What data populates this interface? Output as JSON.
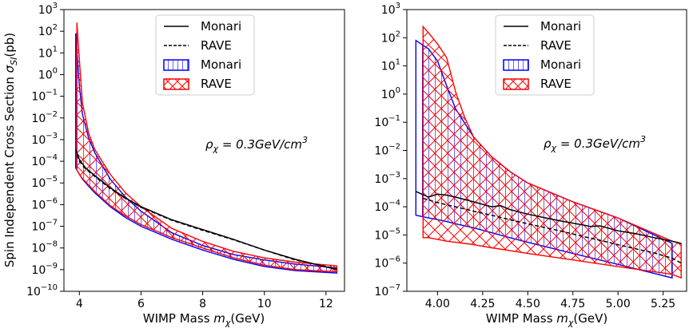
{
  "chart_data": [
    {
      "type": "area",
      "panel": "left",
      "xlabel_text": "WIMP Mass ",
      "xlabel_var": "m",
      "xlabel_sub": "χ",
      "xlabel_unit": "(GeV)",
      "ylabel_text": "Spin Independent Cross Section ",
      "ylabel_var": "σ",
      "ylabel_sub": "SI",
      "ylabel_unit": "(pb)",
      "xlim": [
        3.5,
        12.6
      ],
      "ylim_log10": [
        -10,
        3
      ],
      "x_ticks": [
        4,
        6,
        8,
        10,
        12
      ],
      "x_tick_labels": [
        "4",
        "6",
        "8",
        "10",
        "12"
      ],
      "y_tick_exponents": [
        -10,
        -9,
        -8,
        -7,
        -6,
        -5,
        -4,
        -3,
        -2,
        -1,
        0,
        1,
        2,
        3
      ],
      "annotation": {
        "var": "ρ",
        "sub": "χ",
        "text": " = 0.3GeV/cm",
        "sup": "3"
      },
      "legend": {
        "position": "upper-center",
        "entries": [
          "Monari",
          "RAVE",
          "Monari",
          "RAVE"
        ]
      },
      "series": [
        {
          "name": "Monari",
          "kind": "line",
          "style": "solid",
          "color": "#000000",
          "x": [
            3.88,
            4.0,
            4.2,
            4.5,
            5.0,
            5.5,
            6.0,
            7.0,
            8.0,
            9.0,
            10.0,
            11.0,
            12.35
          ],
          "y": [
            0.00035,
            0.00012,
            5e-05,
            2.2e-05,
            6e-06,
            2e-06,
            8e-07,
            2e-07,
            7e-08,
            2.5e-08,
            8e-09,
            3e-09,
            1e-09
          ]
        },
        {
          "name": "RAVE",
          "kind": "line",
          "style": "dashed",
          "color": "#000000",
          "x": [
            3.92,
            4.0,
            4.2,
            4.5,
            5.0,
            5.5,
            6.0,
            7.0,
            8.0,
            9.0,
            10.0,
            11.0,
            12.35
          ],
          "y": [
            0.0002,
            0.0001,
            4.5e-05,
            2e-05,
            5.5e-06,
            1.9e-06,
            7.5e-07,
            1.9e-07,
            6.5e-08,
            2.4e-08,
            8e-09,
            2.8e-09,
            1.1e-09
          ]
        },
        {
          "name": "Monari",
          "kind": "band",
          "color": "#0000ff",
          "hatch": "vertical",
          "x": [
            3.88,
            4.0,
            4.1,
            4.3,
            4.5,
            5.0,
            5.5,
            6.0,
            7.0,
            8.0,
            9.0,
            10.0,
            11.0,
            12.35
          ],
          "upper": [
            80,
            0.3,
            0.015,
            0.0012,
            0.00025,
            1.5e-05,
            2.2e-06,
            5e-07,
            5e-08,
            1.3e-08,
            5e-09,
            2.8e-09,
            1.8e-09,
            1.2e-09
          ],
          "lower": [
            5e-05,
            2.5e-05,
            1.5e-05,
            7e-06,
            3.5e-06,
            8e-07,
            2.5e-07,
            1e-07,
            2.5e-08,
            8e-09,
            3e-09,
            1.4e-09,
            9e-10,
            7e-10
          ]
        },
        {
          "name": "RAVE",
          "kind": "band",
          "color": "#ff0000",
          "hatch": "cross",
          "x": [
            3.92,
            4.0,
            4.1,
            4.3,
            4.5,
            5.0,
            5.5,
            6.0,
            7.0,
            8.0,
            9.0,
            10.0,
            11.0,
            12.35
          ],
          "upper": [
            250,
            5,
            0.05,
            0.002,
            0.00035,
            2.5e-05,
            3.5e-06,
            8e-07,
            8e-08,
            2e-08,
            7e-09,
            3.5e-09,
            2.2e-09,
            1.5e-09
          ],
          "lower": [
            4e-05,
            2.5e-05,
            1.6e-05,
            8e-06,
            4e-06,
            9e-07,
            3e-07,
            1.2e-07,
            3e-08,
            1e-08,
            3.5e-09,
            1.6e-09,
            1e-09,
            8e-10
          ]
        }
      ]
    },
    {
      "type": "area",
      "panel": "right",
      "xlabel_text": "WIMP Mass ",
      "xlabel_var": "m",
      "xlabel_sub": "χ",
      "xlabel_unit": "(GeV)",
      "ylabel_text": "",
      "xlim": [
        3.83,
        5.38
      ],
      "ylim_log10": [
        -7,
        3
      ],
      "x_ticks": [
        4.0,
        4.25,
        4.5,
        4.75,
        5.0,
        5.25
      ],
      "x_tick_labels": [
        "4.00",
        "4.25",
        "4.50",
        "4.75",
        "5.00",
        "5.25"
      ],
      "y_tick_exponents": [
        -7,
        -6,
        -5,
        -4,
        -3,
        -2,
        -1,
        0,
        1,
        2,
        3
      ],
      "annotation": {
        "var": "ρ",
        "sub": "χ",
        "text": " = 0.3GeV/cm",
        "sup": "3"
      },
      "legend": {
        "position": "upper-center",
        "entries": [
          "Monari",
          "RAVE",
          "Monari",
          "RAVE"
        ]
      },
      "series": [
        {
          "name": "Monari",
          "kind": "line",
          "style": "solid",
          "color": "#000000",
          "x": [
            3.88,
            3.95,
            4.0,
            4.05,
            4.1,
            4.2,
            4.3,
            4.35,
            4.4,
            4.5,
            4.6,
            4.7,
            4.8,
            4.85,
            4.9,
            5.0,
            5.1,
            5.2,
            5.3,
            5.35
          ],
          "y": [
            0.00035,
            0.00022,
            0.00028,
            0.00026,
            0.00022,
            0.00015,
            0.0001,
            0.00011,
            8e-05,
            5.5e-05,
            4e-05,
            3e-05,
            2.3e-05,
            2e-05,
            2.1e-05,
            1.4e-05,
            1.1e-05,
            8e-06,
            6e-06,
            5e-06
          ]
        },
        {
          "name": "RAVE",
          "kind": "line",
          "style": "dashed",
          "color": "#000000",
          "x": [
            3.92,
            4.0,
            4.1,
            4.2,
            4.3,
            4.4,
            4.5,
            4.6,
            4.7,
            4.8,
            4.9,
            5.0,
            5.1,
            5.2,
            5.3,
            5.35
          ],
          "y": [
            0.0002,
            0.00014,
            0.0001,
            7e-05,
            5e-05,
            3.5e-05,
            2.5e-05,
            1.8e-05,
            1.3e-05,
            9e-06,
            6.5e-06,
            4.5e-06,
            3.2e-06,
            2.3e-06,
            1.5e-06,
            1e-06
          ]
        },
        {
          "name": "Monari",
          "kind": "band",
          "color": "#0000ff",
          "hatch": "vertical",
          "x": [
            3.88,
            3.95,
            4.0,
            4.05,
            4.1,
            4.2,
            4.3,
            4.4,
            4.5,
            4.75,
            5.0,
            5.3
          ],
          "upper": [
            80,
            40,
            15,
            2,
            0.3,
            0.03,
            0.006,
            0.0018,
            0.0007,
            0.00015,
            4e-05,
            5e-06
          ],
          "lower": [
            5e-05,
            4e-05,
            3.5e-05,
            3e-05,
            2.5e-05,
            1.8e-05,
            1.2e-05,
            8e-06,
            5.5e-06,
            2.2e-06,
            9e-07,
            3e-07
          ]
        },
        {
          "name": "RAVE",
          "kind": "band",
          "color": "#ff0000",
          "hatch": "cross",
          "x": [
            3.92,
            3.95,
            4.0,
            4.05,
            4.1,
            4.15,
            4.2,
            4.3,
            4.4,
            4.5,
            4.75,
            5.0,
            5.3,
            5.35
          ],
          "upper": [
            250,
            150,
            60,
            20,
            1.2,
            0.15,
            0.03,
            0.006,
            0.0018,
            0.0007,
            0.00015,
            4e-05,
            6e-06,
            5e-06
          ],
          "lower": [
            8e-06,
            8e-06,
            7e-06,
            6e-06,
            5.5e-06,
            5e-06,
            4.5e-06,
            3.5e-06,
            2.8e-06,
            2.2e-06,
            1.3e-06,
            7.5e-07,
            4e-07,
            3e-07
          ]
        }
      ]
    }
  ]
}
